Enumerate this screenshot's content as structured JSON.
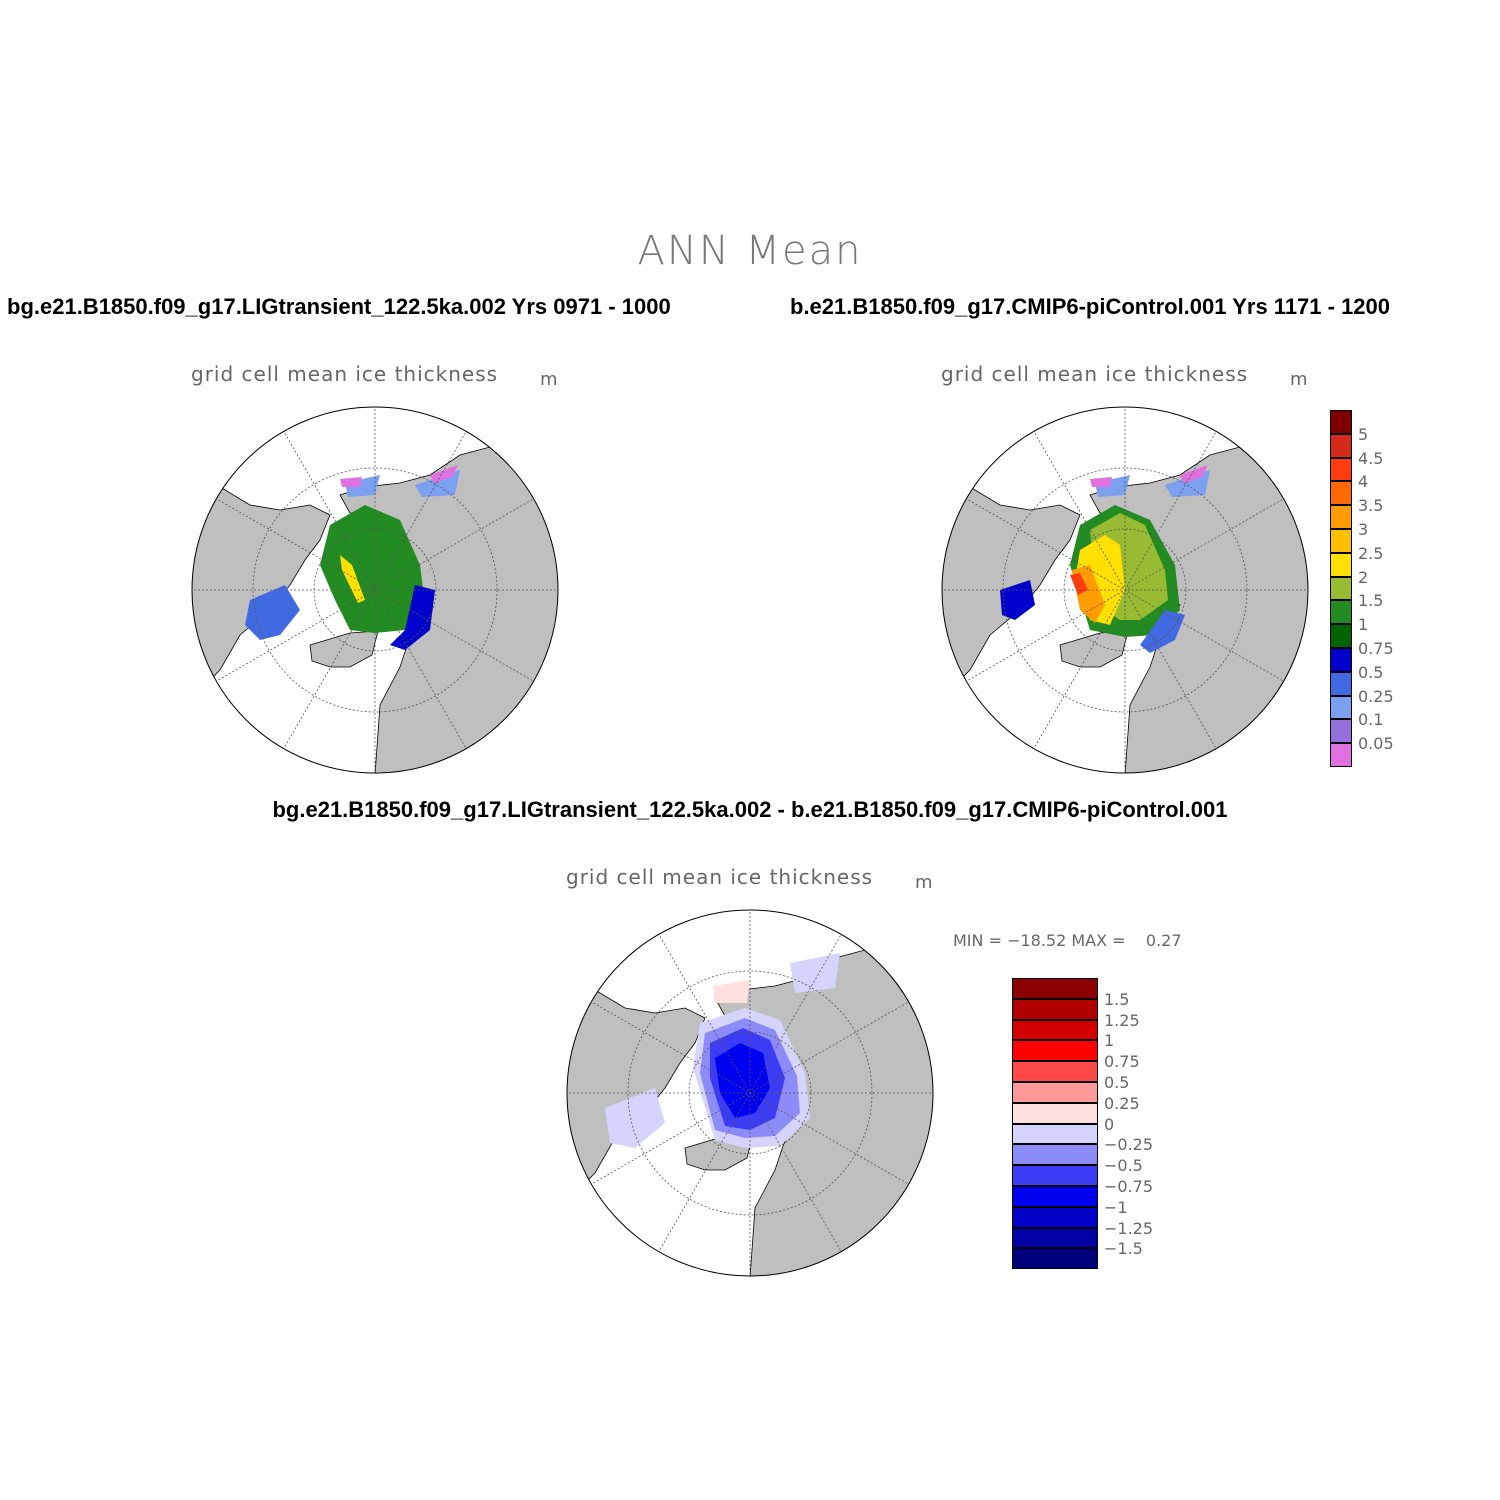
{
  "figure": {
    "title": "ANN Mean",
    "case1_title": "bg.e21.B1850.f09_g17.LIGtransient_122.5ka.002  Yrs 0971 - 1000",
    "case2_title": "b.e21.B1850.f09_g17.CMIP6-piControl.001  Yrs 1171 - 1200",
    "diff_title": "bg.e21.B1850.f09_g17.LIGtransient_122.5ka.002 - b.e21.B1850.f09_g17.CMIP6-piControl.001"
  },
  "panels": {
    "case1": {
      "field": "grid cell mean ice thickness",
      "units": "m"
    },
    "case2": {
      "field": "grid cell mean ice thickness",
      "units": "m"
    },
    "diff": {
      "field": "grid cell mean ice thickness",
      "units": "m",
      "stats": "MIN = −18.52 MAX =    0.27"
    }
  },
  "colorbar_thickness": {
    "labels": [
      "5",
      "4.5",
      "4",
      "3.5",
      "3",
      "2.5",
      "2",
      "1.5",
      "1",
      "0.75",
      "0.5",
      "0.25",
      "0.1",
      "0.05"
    ],
    "colors": [
      "#800000",
      "#d42a1a",
      "#ff3c10",
      "#ff6a00",
      "#ff9c00",
      "#ffbf00",
      "#ffe000",
      "#98bb33",
      "#228b22",
      "#006400",
      "#0000cd",
      "#4169e1",
      "#7ba0f0",
      "#9370db",
      "#e070e0"
    ]
  },
  "colorbar_diff": {
    "labels": [
      "1.5",
      "1.25",
      "1",
      "0.75",
      "0.5",
      "0.25",
      "0",
      "−0.25",
      "−0.5",
      "−0.75",
      "−1",
      "−1.25",
      "−1.5"
    ],
    "colors": [
      "#8b0000",
      "#b00000",
      "#d40000",
      "#ff0000",
      "#ff4848",
      "#ff9898",
      "#ffe0e0",
      "#d4d4fc",
      "#8c8cf8",
      "#3c3cf4",
      "#0000f0",
      "#0000c8",
      "#0000a4",
      "#00007c"
    ]
  },
  "colors": {
    "land": "#bfbfbf",
    "open_ocean": "#ffffff",
    "coastline": "#000000",
    "grid": "#555555"
  }
}
